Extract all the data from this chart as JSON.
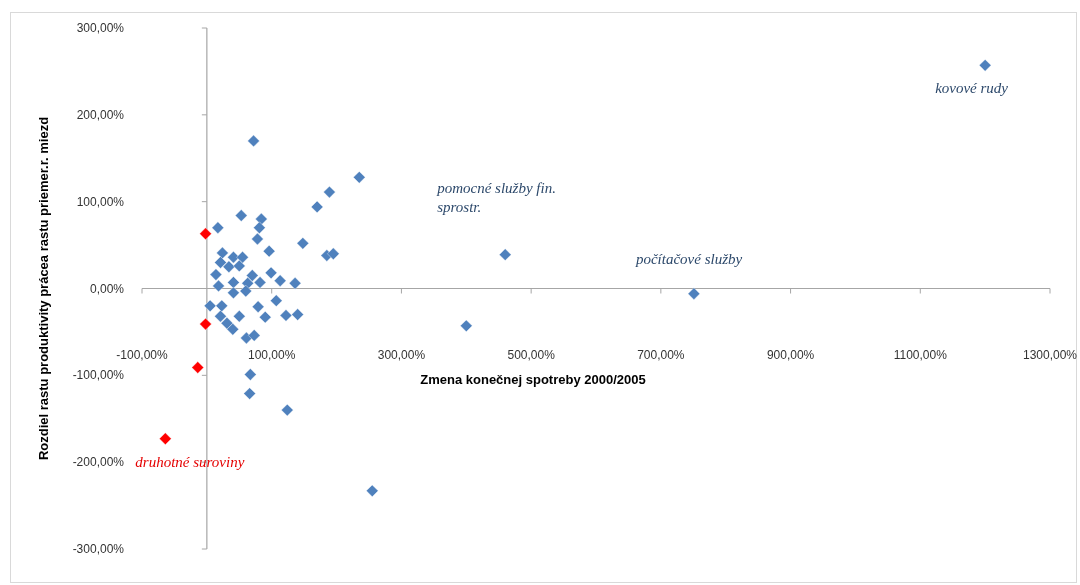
{
  "chart_data": {
    "type": "scatter",
    "xlabel": "Zmena konečnej spotreby 2000/2005",
    "ylabel": "Rozdiel rastu produktivity prácea rastu priemer.r. miezd",
    "marker": "diamond",
    "xlim": [
      -100,
      1300
    ],
    "xticks": [
      {
        "value": -100,
        "label": "-100,00%"
      },
      {
        "value": 100,
        "label": "100,00%"
      },
      {
        "value": 300,
        "label": "300,00%"
      },
      {
        "value": 500,
        "label": "500,00%"
      },
      {
        "value": 700,
        "label": "700,00%"
      },
      {
        "value": 900,
        "label": "900,00%"
      },
      {
        "value": 1100,
        "label": "1100,00%"
      },
      {
        "value": 1300,
        "label": "1300,00%"
      }
    ],
    "ylim": [
      -300,
      300
    ],
    "yticks": [
      {
        "value": -300,
        "label": "-300,00%"
      },
      {
        "value": -200,
        "label": "-200,00%"
      },
      {
        "value": -100,
        "label": "-100,00%"
      },
      {
        "value": 0,
        "label": "0,00%"
      },
      {
        "value": 100,
        "label": "100,00%"
      },
      {
        "value": 200,
        "label": "200,00%"
      },
      {
        "value": 300,
        "label": "300,00%"
      }
    ],
    "series": [
      {
        "color": "#4f81bd",
        "x": [
          72,
          235,
          189,
          170,
          53,
          84,
          81,
          17,
          78,
          148,
          96,
          24,
          185,
          195,
          21,
          41,
          55,
          34,
          50,
          14,
          70,
          99,
          41,
          63,
          82,
          113,
          136,
          18,
          41,
          60,
          5,
          23,
          79,
          107,
          21,
          50,
          90,
          122,
          140,
          31,
          40,
          61,
          73,
          67,
          66,
          124,
          255,
          460,
          751,
          400,
          1200
        ],
        "values": [
          170,
          128,
          111,
          94,
          84,
          80,
          70,
          70,
          57,
          52,
          43,
          41,
          38,
          40,
          30,
          36,
          36,
          25,
          26,
          16,
          15,
          18,
          7,
          6,
          7,
          9,
          6,
          3,
          -5,
          -3,
          -20,
          -20,
          -21,
          -14,
          -32,
          -32,
          -33,
          -31,
          -30,
          -40,
          -47,
          -57,
          -54,
          -99,
          -121,
          -140,
          -233,
          39,
          -6,
          -43,
          257
        ]
      },
      {
        "color": "#ff0000",
        "x": [
          -2,
          -2,
          -14,
          -64
        ],
        "values": [
          63,
          -41,
          -91,
          -173
        ]
      }
    ],
    "annotations": [
      {
        "text": "kovové rudy",
        "x": 1200,
        "y": 257
      },
      {
        "text": "pomocné služby fin. sprostr.",
        "x": 460,
        "y": 39
      },
      {
        "text": "počítačové služby",
        "x": 751,
        "y": -6
      },
      {
        "text": "druhotné suroviny",
        "x": -64,
        "y": -173
      }
    ]
  }
}
